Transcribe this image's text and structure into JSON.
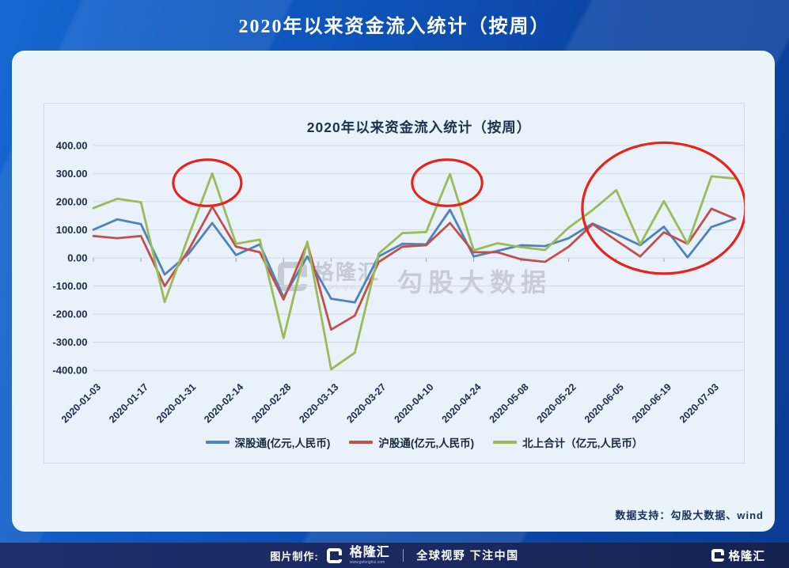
{
  "header": {
    "title": "2020年以来资金流入统计（按周）"
  },
  "watermark": {
    "brand": "格隆汇",
    "url": "www.gelonghui.com",
    "big_text": "勾股大数据"
  },
  "support_text": "数据支持：勾股大数据、wind",
  "footer": {
    "credit_label": "图片制作:",
    "brand": "格隆汇",
    "brand_url": "www.gelonghui.com",
    "slogan": "全球视野 下注中国",
    "right_brand": "格隆汇"
  },
  "chart_data": {
    "type": "line",
    "title": "2020年以来资金流入统计（按周）",
    "x_tick_labels": [
      "2020-01-03",
      "2020-01-17",
      "2020-01-31",
      "2020-02-14",
      "2020-02-28",
      "2020-03-13",
      "2020-03-27",
      "2020-04-10",
      "2020-04-24",
      "2020-05-08",
      "2020-05-22",
      "2020-06-05",
      "2020-06-19",
      "2020-07-03"
    ],
    "label_every": 2,
    "n_points": 28,
    "ylim": [
      -400,
      400
    ],
    "y_tick_step": 100,
    "y_tick_labels": [
      "400.00",
      "300.00",
      "200.00",
      "100.00",
      "0.00",
      "-100.00",
      "-200.00",
      "-300.00",
      "-400.00"
    ],
    "grid": true,
    "legend_position": "bottom",
    "series": [
      {
        "name": "深股通(亿元,人民币)",
        "color": "#4F81BD",
        "values": [
          100,
          137,
          120,
          -59,
          14,
          124,
          10,
          48,
          -140,
          5,
          -145,
          -158,
          5,
          50,
          48,
          171,
          5,
          25,
          45,
          42,
          70,
          122,
          85,
          45,
          111,
          2,
          110,
          139
        ]
      },
      {
        "name": "沪股通(亿元,人民币)",
        "color": "#C0504D",
        "values": [
          78,
          70,
          78,
          -100,
          27,
          182,
          40,
          20,
          -148,
          52,
          -255,
          -205,
          -15,
          40,
          45,
          124,
          20,
          20,
          -5,
          -14,
          40,
          120,
          62,
          5,
          91,
          50,
          175,
          139
        ]
      },
      {
        "name": "北上合计（亿元,人民币）",
        "color": "#9BBB59",
        "values": [
          177,
          210,
          198,
          -157,
          76,
          300,
          50,
          65,
          -285,
          58,
          -396,
          -337,
          15,
          88,
          92,
          298,
          27,
          52,
          38,
          28,
          108,
          170,
          241,
          48,
          202,
          50,
          290,
          282
        ]
      }
    ],
    "annotations": {
      "ellipse_color": "#e8231a",
      "ellipses": [
        {
          "cx_index": 4.79,
          "cy_value": 267,
          "rx_weeks": 1.43,
          "ry_value": 82
        },
        {
          "cx_index": 14.88,
          "cy_value": 267,
          "rx_weeks": 1.47,
          "ry_value": 82
        },
        {
          "cx_index": 24.0,
          "cy_value": 177,
          "rx_weeks": 3.43,
          "ry_value": 233
        }
      ]
    }
  }
}
